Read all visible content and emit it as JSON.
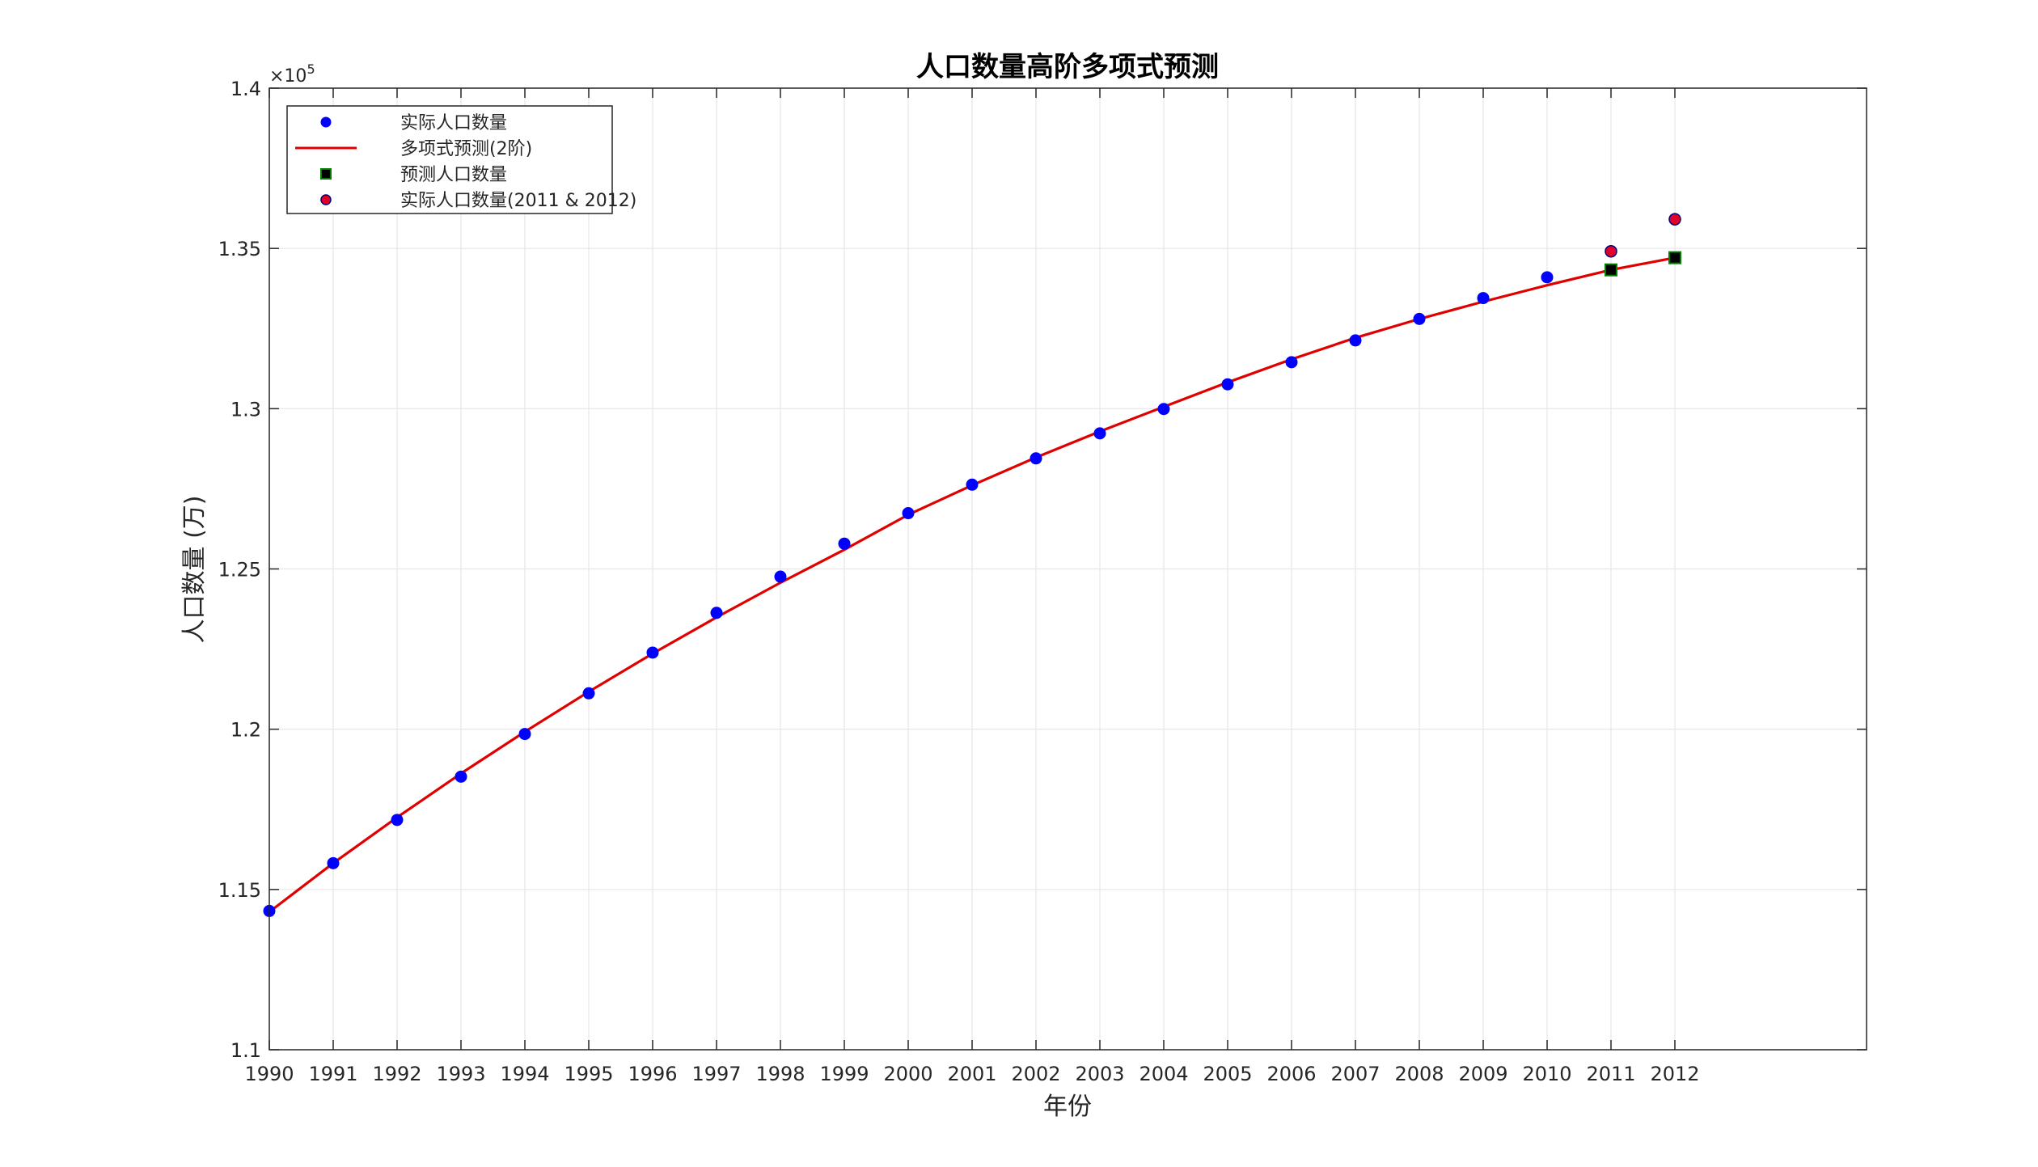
{
  "chart_data": {
    "type": "line",
    "title": "人口数量高阶多项式预测",
    "xlabel": "年份",
    "ylabel": "人口数量 (万)",
    "y_exponent_label": "×10",
    "y_exponent_power": "5",
    "xlim": [
      1990,
      2015
    ],
    "ylim": [
      1.1,
      1.4
    ],
    "x_ticks": [
      1990,
      1991,
      1992,
      1993,
      1994,
      1995,
      1996,
      1997,
      1998,
      1999,
      2000,
      2001,
      2002,
      2003,
      2004,
      2005,
      2006,
      2007,
      2008,
      2009,
      2010,
      2011,
      2012
    ],
    "y_ticks": [
      1.1,
      1.15,
      1.2,
      1.25,
      1.3,
      1.35,
      1.4
    ],
    "y_tick_labels": [
      "1.1",
      "1.15",
      "1.2",
      "1.25",
      "1.3",
      "1.35",
      "1.4"
    ],
    "grid": true,
    "legend_position": "top-left",
    "series": [
      {
        "name": "实际人口数量",
        "kind": "scatter",
        "marker": "circle",
        "color": "#0000ff",
        "x": [
          1990,
          1991,
          1992,
          1993,
          1994,
          1995,
          1996,
          1997,
          1998,
          1999,
          2000,
          2001,
          2002,
          2003,
          2004,
          2005,
          2006,
          2007,
          2008,
          2009,
          2010
        ],
        "y": [
          1.1433,
          1.1582,
          1.1717,
          1.1852,
          1.1985,
          1.2112,
          1.2239,
          1.2363,
          1.2476,
          1.2579,
          1.2674,
          1.2763,
          1.2845,
          1.2923,
          1.2999,
          1.3076,
          1.3145,
          1.3213,
          1.328,
          1.3345,
          1.341
        ]
      },
      {
        "name": "多项式预测(2阶)",
        "kind": "line",
        "color": "#e00000",
        "x": [
          1990,
          1991,
          1992,
          1993,
          1994,
          1995,
          1996,
          1997,
          1998,
          1999,
          2000,
          2001,
          2002,
          2003,
          2004,
          2005,
          2006,
          2007,
          2008,
          2009,
          2010,
          2011,
          2012
        ],
        "y": [
          1.143,
          1.1582,
          1.1725,
          1.1862,
          1.1992,
          1.2117,
          1.2236,
          1.2349,
          1.2457,
          1.256,
          1.2669,
          1.2761,
          1.2848,
          1.2929,
          1.3006,
          1.3082,
          1.3154,
          1.3221,
          1.328,
          1.3334,
          1.3385,
          1.3433,
          1.3471
        ]
      },
      {
        "name": "预测人口数量",
        "kind": "scatter",
        "marker": "square",
        "color": "#000000",
        "edge_color": "#008000",
        "x": [
          2011,
          2012
        ],
        "y": [
          1.3433,
          1.3471
        ]
      },
      {
        "name": "实际人口数量(2011 & 2012)",
        "kind": "scatter",
        "marker": "circle",
        "color": "#e0002a",
        "edge_color": "#00007a",
        "x": [
          2011,
          2012
        ],
        "y": [
          1.3491,
          1.3591
        ]
      }
    ]
  }
}
